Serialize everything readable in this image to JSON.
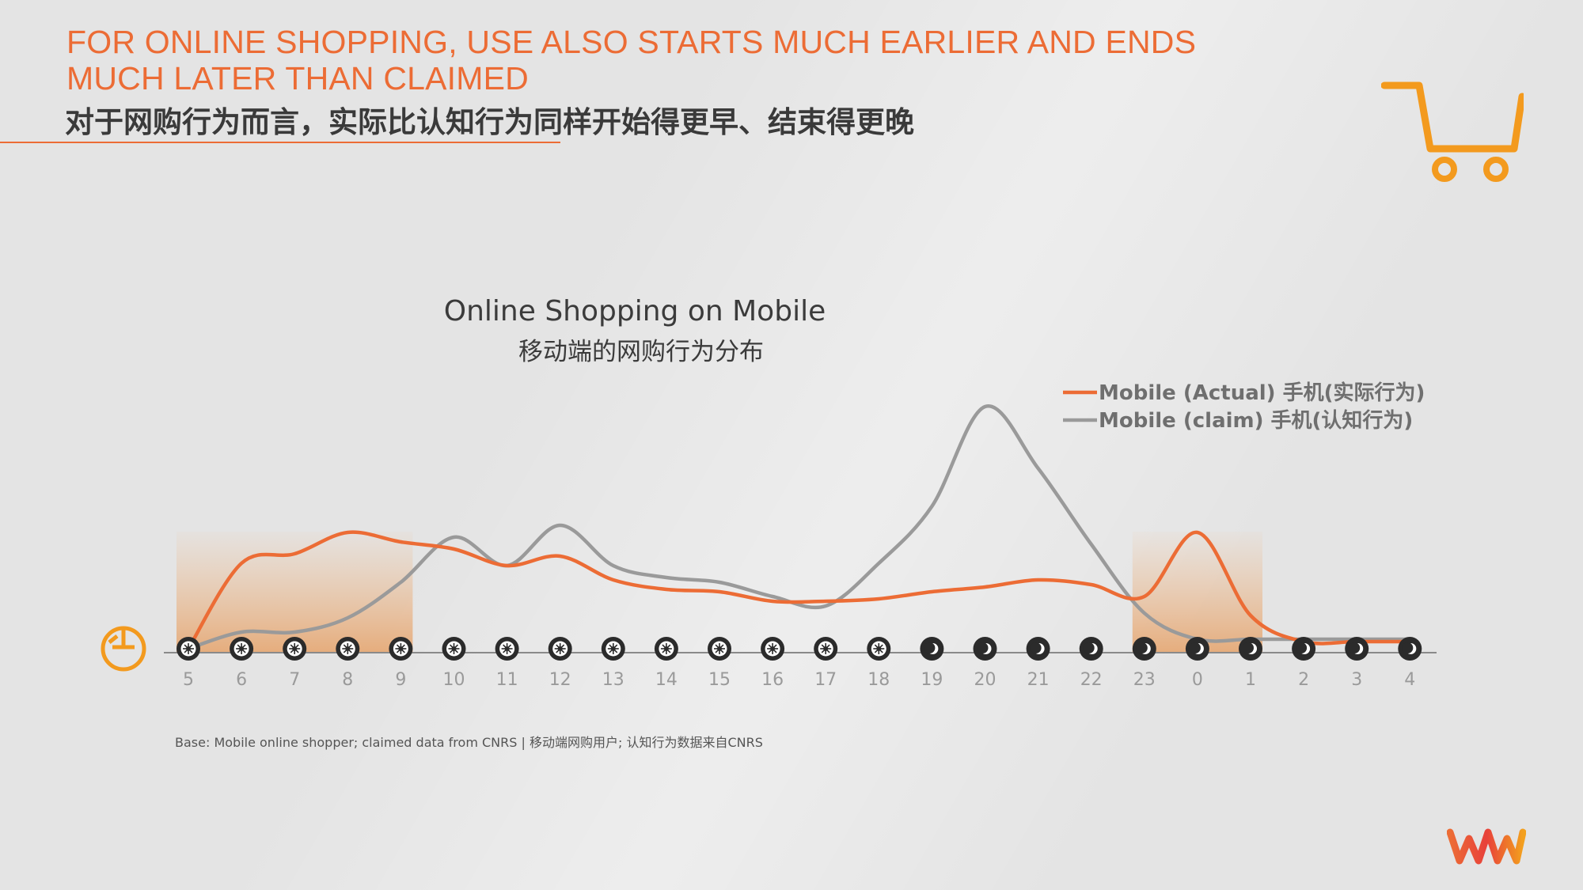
{
  "slide": {
    "title_en": "FOR ONLINE SHOPPING, USE ALSO STARTS MUCH EARLIER AND ENDS MUCH LATER THAN CLAIMED",
    "title_cn": "对于网购行为而言，实际比认知行为同样开始得更早、结束得更晚",
    "footnote": "Base: Mobile online shopper; claimed data from CNRS | 移动端网购用户; 认知行为数据来自CNRS",
    "accent_color": "#ec6c35",
    "cart_icon": "shopping-cart-icon",
    "clock_icon": "clock-icon",
    "logo_icon": "wm-logo"
  },
  "chart_data": {
    "type": "line",
    "title": "Online Shopping on Mobile",
    "subtitle": "移动端的网购行为分布",
    "categories": [
      "5",
      "6",
      "7",
      "8",
      "9",
      "10",
      "11",
      "12",
      "13",
      "14",
      "15",
      "16",
      "17",
      "18",
      "19",
      "20",
      "21",
      "22",
      "23",
      "0",
      "1",
      "2",
      "3",
      "4"
    ],
    "series": [
      {
        "name": "Mobile (Actual) 手机(实际行为)",
        "color": "#ec6c35",
        "values": [
          0,
          36,
          40,
          49,
          45,
          42,
          35,
          39,
          29,
          25,
          24,
          20,
          20,
          21,
          24,
          26,
          29,
          27,
          22,
          49,
          14,
          3,
          3,
          3
        ]
      },
      {
        "name": "Mobile (claim) 手机(认知行为)",
        "color": "#9a9a9a",
        "values": [
          0,
          7,
          7,
          13,
          28,
          47,
          35,
          52,
          35,
          30,
          28,
          22,
          18,
          36,
          60,
          102,
          76,
          44,
          15,
          4,
          4,
          4,
          4,
          4
        ]
      }
    ],
    "icons_per_hour": [
      "sun",
      "sun",
      "sun",
      "sun",
      "sun",
      "sun",
      "sun",
      "sun",
      "sun",
      "sun",
      "sun",
      "sun",
      "sun",
      "sun",
      "moon",
      "moon",
      "moon",
      "moon",
      "moon",
      "moon",
      "moon",
      "moon",
      "moon",
      "moon"
    ],
    "highlight_ranges": [
      [
        "5",
        "9"
      ],
      [
        "23",
        "1"
      ]
    ],
    "ylim": [
      0,
      110
    ],
    "grid": false,
    "legend_position": "top-right"
  }
}
